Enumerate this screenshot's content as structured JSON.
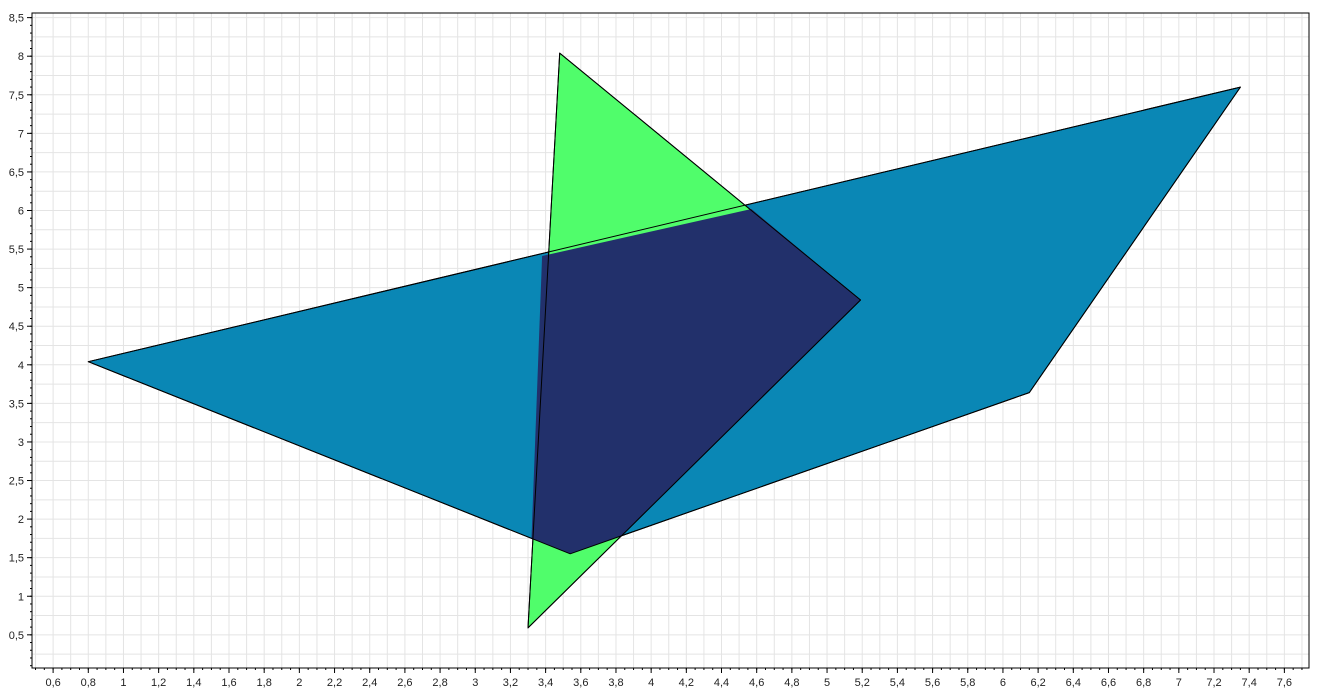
{
  "chart_data": {
    "type": "area",
    "grid": true,
    "xlim": [
      0.48,
      7.74
    ],
    "ylim": [
      0.07,
      8.56
    ],
    "x_ticks": [
      "0,6",
      "0,8",
      "1",
      "1,2",
      "1,4",
      "1,6",
      "1,8",
      "2",
      "2,2",
      "2,4",
      "2,6",
      "2,8",
      "3",
      "3,2",
      "3,4",
      "3,6",
      "3,8",
      "4",
      "4,2",
      "4,4",
      "4,6",
      "4,8",
      "5",
      "5,2",
      "5,4",
      "5,6",
      "5,8",
      "6",
      "6,2",
      "6,4",
      "6,6",
      "6,8",
      "7",
      "7,2",
      "7,4",
      "7,6"
    ],
    "y_ticks": [
      "0,5",
      "1",
      "1,5",
      "2",
      "2,5",
      "3",
      "3,5",
      "4",
      "4,5",
      "5",
      "5,5",
      "6",
      "6,5",
      "7",
      "7,5",
      "8",
      "8,5"
    ],
    "series": [
      {
        "shape": "polygon",
        "color": "#0a87b5",
        "points": [
          [
            0.8,
            4.04
          ],
          [
            3.54,
            1.55
          ],
          [
            6.15,
            3.64
          ],
          [
            7.35,
            7.6
          ]
        ]
      },
      {
        "shape": "polygon",
        "color": "#50fd6b",
        "points": [
          [
            3.48,
            8.04
          ],
          [
            5.19,
            4.84
          ],
          [
            3.3,
            0.59
          ]
        ]
      }
    ],
    "overlap": {
      "color": "#22306b",
      "points": [
        [
          3.38,
          5.41
        ],
        [
          4.57,
          6.02
        ],
        [
          5.19,
          4.84
        ],
        [
          3.83,
          1.78
        ],
        [
          3.54,
          1.55
        ],
        [
          3.32,
          1.75
        ]
      ]
    }
  }
}
